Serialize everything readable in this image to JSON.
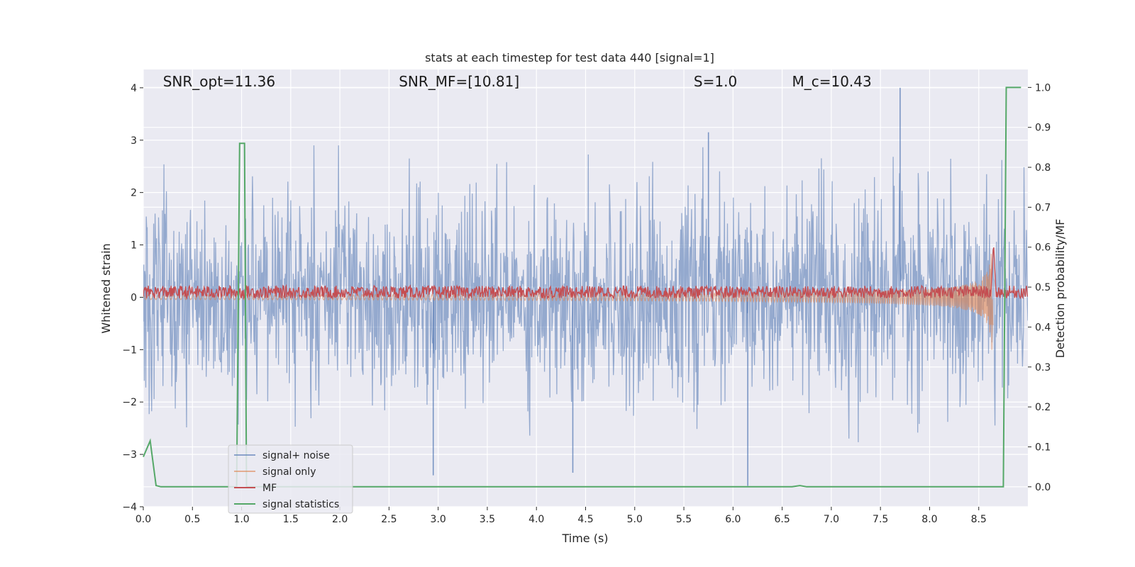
{
  "chart_data": {
    "type": "line",
    "title": "stats at each timestep for test data 440 [signal=1]",
    "xlabel": "Time (s)",
    "ylabel": "Whitened strain",
    "ylabel_right": "Detection probability/MF",
    "xlim": [
      0.0,
      9.0
    ],
    "ylim": [
      -4.0,
      4.35
    ],
    "ylim_right": [
      -0.05,
      1.045
    ],
    "x_ticks": [
      "0.0",
      "0.5",
      "1.0",
      "1.5",
      "2.0",
      "2.5",
      "3.0",
      "3.5",
      "4.0",
      "4.5",
      "5.0",
      "5.5",
      "6.0",
      "6.5",
      "7.0",
      "7.5",
      "8.0",
      "8.5"
    ],
    "x_tick_values": [
      0.0,
      0.5,
      1.0,
      1.5,
      2.0,
      2.5,
      3.0,
      3.5,
      4.0,
      4.5,
      5.0,
      5.5,
      6.0,
      6.5,
      7.0,
      7.5,
      8.0,
      8.5
    ],
    "y_ticks": [
      "4",
      "3",
      "2",
      "1",
      "0",
      "−1",
      "−2",
      "−3",
      "−4"
    ],
    "y_tick_values": [
      4,
      3,
      2,
      1,
      0,
      -1,
      -2,
      -3,
      -4
    ],
    "y_ticks_right": [
      "1.0",
      "0.9",
      "0.8",
      "0.7",
      "0.6",
      "0.5",
      "0.4",
      "0.3",
      "0.2",
      "0.1",
      "0.0"
    ],
    "y_tick_values_right": [
      1.0,
      0.9,
      0.8,
      0.7,
      0.6,
      0.5,
      0.4,
      0.3,
      0.2,
      0.1,
      0.0
    ],
    "grid": true,
    "legend_position": "lower-left",
    "annotations": [
      {
        "text": "SNR_opt=11.36",
        "x": 0.2,
        "y": 4.0
      },
      {
        "text": "SNR_MF=[10.81]",
        "x": 2.6,
        "y": 4.0
      },
      {
        "text": "S=1.0",
        "x": 5.6,
        "y": 4.0
      },
      {
        "text": "M_c=10.43",
        "x": 6.6,
        "y": 4.0
      }
    ],
    "series": [
      {
        "name": "signal+ noise",
        "color": "#4c72b0",
        "axis": "left",
        "kind": "noise",
        "amplitude": 1.0,
        "peak_values": [
          {
            "x": 7.7,
            "y": 4.0
          },
          {
            "x": 5.75,
            "y": 3.15
          },
          {
            "x": 6.15,
            "y": -3.6
          },
          {
            "x": 2.95,
            "y": -3.4
          },
          {
            "x": 4.37,
            "y": -3.35
          }
        ]
      },
      {
        "name": "signal only",
        "color": "#dd8452",
        "axis": "left",
        "kind": "chirp",
        "end_x": 8.65,
        "peak_amplitude": 1.55
      },
      {
        "name": "MF",
        "color": "#c44e52",
        "axis": "left",
        "kind": "band",
        "center": 0.1,
        "spread": 0.12,
        "spike": {
          "x": 8.65,
          "y": 0.95
        }
      },
      {
        "name": "signal statistics",
        "color": "#55a868",
        "axis": "right",
        "x": [
          0.0,
          0.07,
          0.13,
          0.18,
          0.9,
          0.95,
          0.98,
          1.0,
          1.03,
          1.05,
          1.1,
          1.5,
          6.6,
          6.68,
          6.75,
          7.0,
          8.7,
          8.75,
          8.78,
          8.8,
          8.85,
          8.93
        ],
        "y": [
          0.075,
          0.115,
          0.003,
          0.0,
          0.0,
          0.0,
          0.86,
          0.86,
          0.86,
          0.0,
          0.0,
          0.0,
          0.0,
          0.003,
          0.0,
          0.0,
          0.0,
          0.0,
          1.0,
          1.0,
          1.0,
          1.0
        ]
      }
    ]
  }
}
